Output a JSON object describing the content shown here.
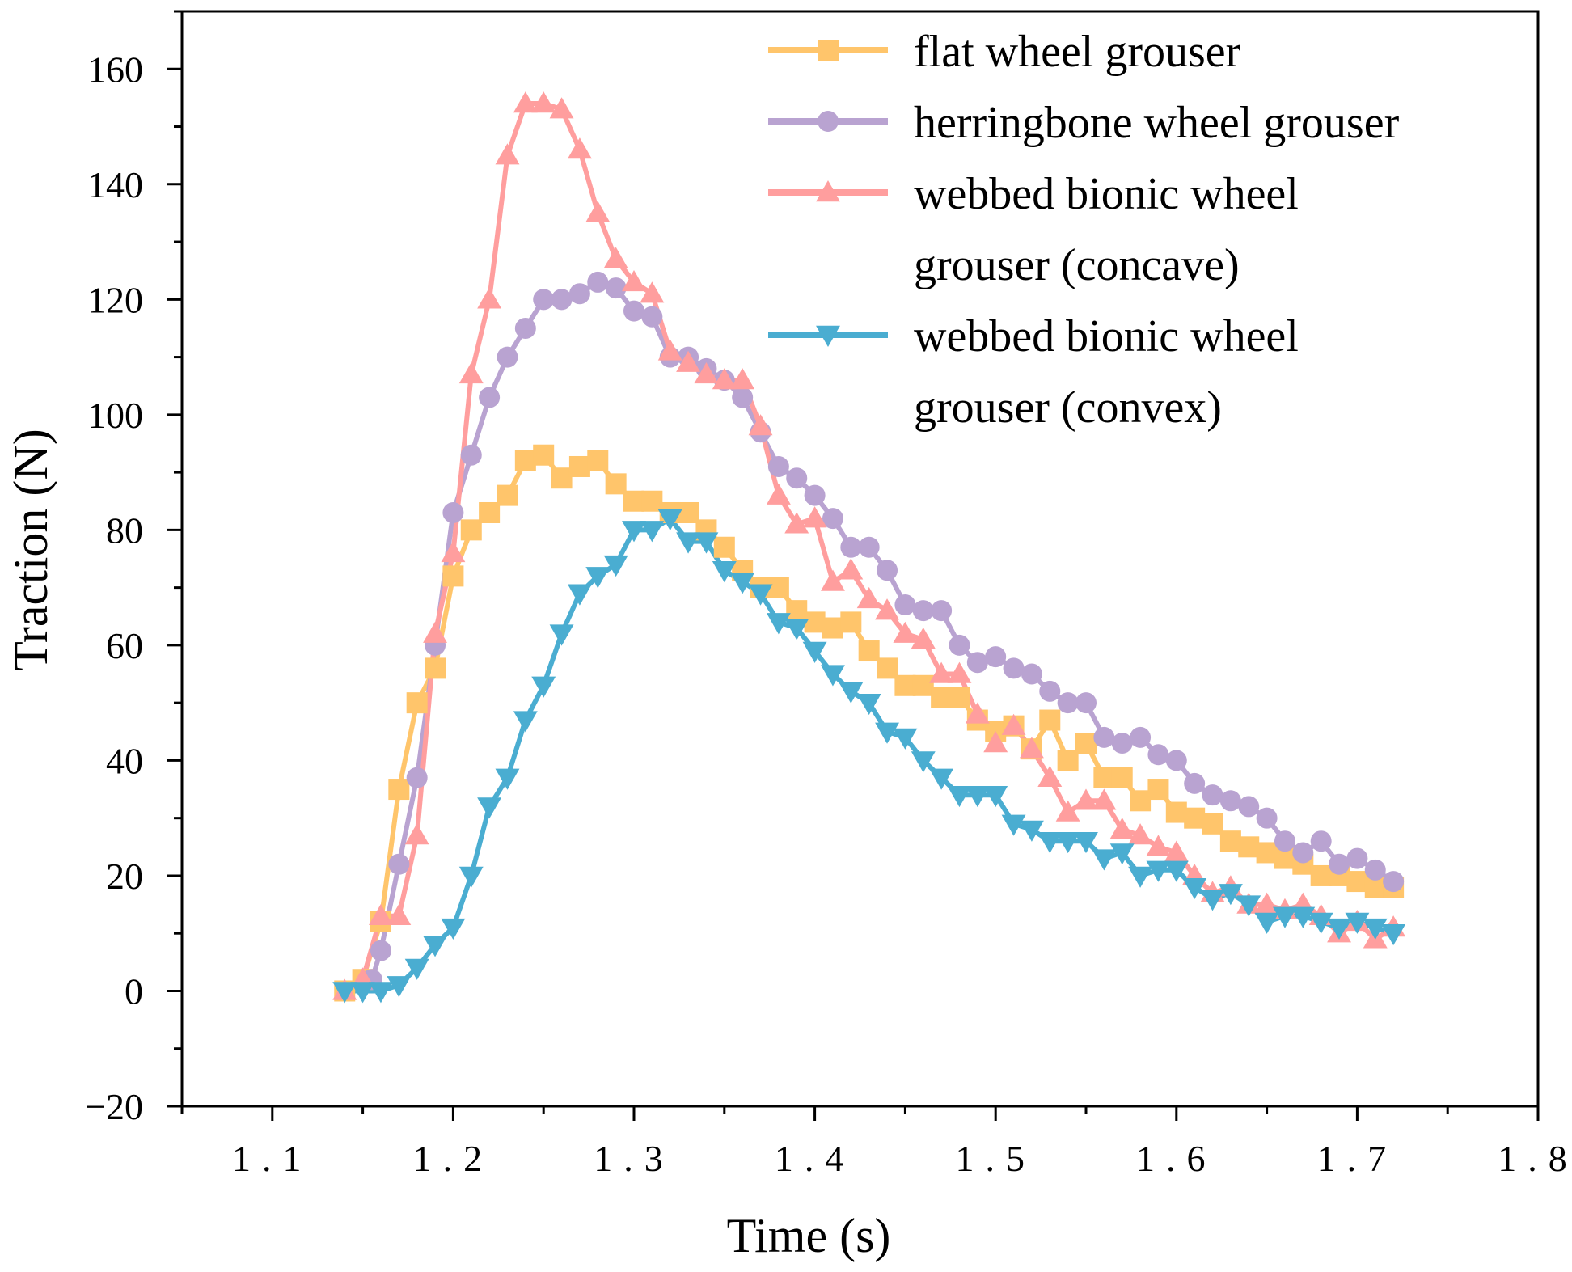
{
  "chart_data": {
    "type": "line",
    "title": "",
    "xlabel": "Time (s)",
    "ylabel": "Traction (N)",
    "xlim": [
      1.05,
      1.8
    ],
    "ylim": [
      -20,
      170
    ],
    "xticks": [
      1.1,
      1.2,
      1.3,
      1.4,
      1.5,
      1.6,
      1.7,
      1.8
    ],
    "xtick_labels": [
      "1.1",
      "1.2",
      "1.3",
      "1.4",
      "1.5",
      "1.6",
      "1.7",
      "1.8"
    ],
    "yticks": [
      -20,
      0,
      20,
      40,
      60,
      80,
      100,
      120,
      140,
      160
    ],
    "ytick_labels": [
      "−20",
      "0",
      "20",
      "40",
      "60",
      "80",
      "100",
      "120",
      "140",
      "160"
    ],
    "grid": false,
    "legend_position": "top-right",
    "series": [
      {
        "name": "flat wheel grouser",
        "legend_lines": [
          "flat wheel grouser"
        ],
        "marker": "square",
        "color": "#FFC56B",
        "x": [
          1.14,
          1.15,
          1.16,
          1.17,
          1.18,
          1.19,
          1.2,
          1.21,
          1.22,
          1.23,
          1.24,
          1.25,
          1.26,
          1.27,
          1.28,
          1.29,
          1.3,
          1.31,
          1.32,
          1.33,
          1.34,
          1.35,
          1.36,
          1.37,
          1.38,
          1.39,
          1.4,
          1.41,
          1.42,
          1.43,
          1.44,
          1.45,
          1.46,
          1.47,
          1.48,
          1.49,
          1.5,
          1.51,
          1.52,
          1.53,
          1.54,
          1.55,
          1.56,
          1.57,
          1.58,
          1.59,
          1.6,
          1.61,
          1.62,
          1.63,
          1.64,
          1.65,
          1.66,
          1.67,
          1.68,
          1.69,
          1.7,
          1.71,
          1.72
        ],
        "y": [
          0,
          2,
          12,
          35,
          50,
          56,
          72,
          80,
          83,
          86,
          92,
          93,
          89,
          91,
          92,
          88,
          85,
          85,
          83,
          83,
          80,
          77,
          73,
          70,
          70,
          66,
          64,
          63,
          64,
          59,
          56,
          53,
          53,
          51,
          51,
          47,
          45,
          46,
          42,
          47,
          40,
          43,
          37,
          37,
          33,
          35,
          31,
          30,
          29,
          26,
          25,
          24,
          23,
          22,
          20,
          20,
          19,
          18,
          18
        ]
      },
      {
        "name": "herringbone wheel grouser",
        "legend_lines": [
          "herringbone wheel grouser"
        ],
        "marker": "circle",
        "color": "#B9A3D1",
        "x": [
          1.155,
          1.16,
          1.17,
          1.18,
          1.19,
          1.2,
          1.21,
          1.22,
          1.23,
          1.24,
          1.25,
          1.26,
          1.27,
          1.28,
          1.29,
          1.3,
          1.31,
          1.32,
          1.33,
          1.34,
          1.35,
          1.36,
          1.37,
          1.38,
          1.39,
          1.4,
          1.41,
          1.42,
          1.43,
          1.44,
          1.45,
          1.46,
          1.47,
          1.48,
          1.49,
          1.5,
          1.51,
          1.52,
          1.53,
          1.54,
          1.55,
          1.56,
          1.57,
          1.58,
          1.59,
          1.6,
          1.61,
          1.62,
          1.63,
          1.64,
          1.65,
          1.66,
          1.67,
          1.68,
          1.69,
          1.7,
          1.71,
          1.72
        ],
        "y": [
          2,
          7,
          22,
          37,
          60,
          83,
          93,
          103,
          110,
          115,
          120,
          120,
          121,
          123,
          122,
          118,
          117,
          110,
          110,
          108,
          106,
          103,
          97,
          91,
          89,
          86,
          82,
          77,
          77,
          73,
          67,
          66,
          66,
          60,
          57,
          58,
          56,
          55,
          52,
          50,
          50,
          44,
          43,
          44,
          41,
          40,
          36,
          34,
          33,
          32,
          30,
          26,
          24,
          26,
          22,
          23,
          21,
          19
        ]
      },
      {
        "name": "webbed bionic wheel grouser (concave)",
        "legend_lines": [
          "webbed bionic wheel",
          "grouser (concave)"
        ],
        "marker": "triangle-up",
        "color": "#FF9E9E",
        "x": [
          1.14,
          1.15,
          1.16,
          1.17,
          1.18,
          1.19,
          1.2,
          1.21,
          1.22,
          1.23,
          1.24,
          1.25,
          1.26,
          1.27,
          1.28,
          1.29,
          1.3,
          1.31,
          1.32,
          1.33,
          1.34,
          1.35,
          1.36,
          1.37,
          1.38,
          1.39,
          1.4,
          1.41,
          1.42,
          1.43,
          1.44,
          1.45,
          1.46,
          1.47,
          1.48,
          1.49,
          1.5,
          1.51,
          1.52,
          1.53,
          1.54,
          1.55,
          1.56,
          1.57,
          1.58,
          1.59,
          1.6,
          1.61,
          1.62,
          1.63,
          1.64,
          1.65,
          1.66,
          1.67,
          1.68,
          1.69,
          1.7,
          1.71,
          1.72
        ],
        "y": [
          0,
          2,
          13,
          13,
          27,
          62,
          76,
          107,
          120,
          145,
          154,
          154,
          153,
          146,
          135,
          127,
          123,
          121,
          111,
          109,
          107,
          106,
          106,
          98,
          86,
          81,
          82,
          71,
          73,
          68,
          66,
          62,
          61,
          55,
          55,
          48,
          43,
          46,
          42,
          37,
          31,
          33,
          33,
          28,
          27,
          25,
          24,
          20,
          17,
          18,
          15,
          15,
          14,
          15,
          13,
          10,
          12,
          9,
          11
        ]
      },
      {
        "name": "webbed bionic wheel grouser (convex)",
        "legend_lines": [
          "webbed bionic wheel",
          "grouser (convex)"
        ],
        "marker": "triangle-down",
        "color": "#4AADD1",
        "x": [
          1.14,
          1.15,
          1.16,
          1.17,
          1.18,
          1.19,
          1.2,
          1.21,
          1.22,
          1.23,
          1.24,
          1.25,
          1.26,
          1.27,
          1.28,
          1.29,
          1.3,
          1.31,
          1.32,
          1.33,
          1.34,
          1.35,
          1.36,
          1.37,
          1.38,
          1.39,
          1.4,
          1.41,
          1.42,
          1.43,
          1.44,
          1.45,
          1.46,
          1.47,
          1.48,
          1.49,
          1.5,
          1.51,
          1.52,
          1.53,
          1.54,
          1.55,
          1.56,
          1.57,
          1.58,
          1.59,
          1.6,
          1.61,
          1.62,
          1.63,
          1.64,
          1.65,
          1.66,
          1.67,
          1.68,
          1.69,
          1.7,
          1.71,
          1.72
        ],
        "y": [
          0,
          0,
          0,
          1,
          4,
          8,
          11,
          20,
          32,
          37,
          47,
          53,
          62,
          69,
          72,
          74,
          80,
          80,
          82,
          78,
          78,
          73,
          71,
          69,
          64,
          63,
          59,
          55,
          52,
          50,
          45,
          44,
          40,
          37,
          34,
          34,
          34,
          29,
          28,
          26,
          26,
          26,
          23,
          24,
          20,
          21,
          21,
          18,
          16,
          17,
          15,
          12,
          13,
          13,
          12,
          11,
          12,
          11,
          10
        ]
      }
    ]
  }
}
